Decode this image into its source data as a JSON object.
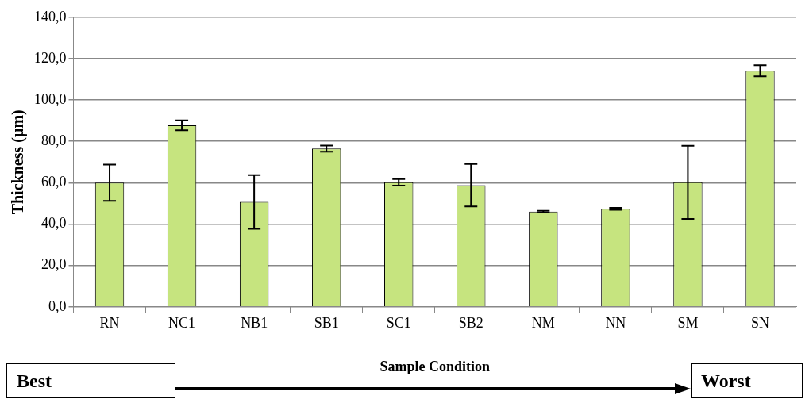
{
  "chart_data": {
    "type": "bar",
    "xlabel": "Sample Condition",
    "ylabel": "Thickness (µm)",
    "categories": [
      "RN",
      "NC1",
      "NB1",
      "SB1",
      "SC1",
      "SB2",
      "NM",
      "NN",
      "SM",
      "SN"
    ],
    "values": [
      60.0,
      87.8,
      50.7,
      76.5,
      60.2,
      58.8,
      46.0,
      47.4,
      60.2,
      114.1
    ],
    "errors": [
      8.8,
      2.4,
      13.0,
      1.5,
      1.6,
      10.3,
      0.4,
      0.5,
      17.7,
      2.7
    ],
    "color": "#c6e47f",
    "ylim": [
      0,
      140
    ],
    "yticks": [
      {
        "value": 0,
        "label": "0,0"
      },
      {
        "value": 20,
        "label": "20,0"
      },
      {
        "value": 40,
        "label": "40,0"
      },
      {
        "value": 60,
        "label": "60,0"
      },
      {
        "value": 80,
        "label": "80,0"
      },
      {
        "value": 100,
        "label": "100,0"
      },
      {
        "value": 120,
        "label": "120,0"
      },
      {
        "value": 140,
        "label": "140,0"
      }
    ],
    "grid": "y",
    "legend": false,
    "annotations": [
      "Best",
      "Worst"
    ]
  }
}
